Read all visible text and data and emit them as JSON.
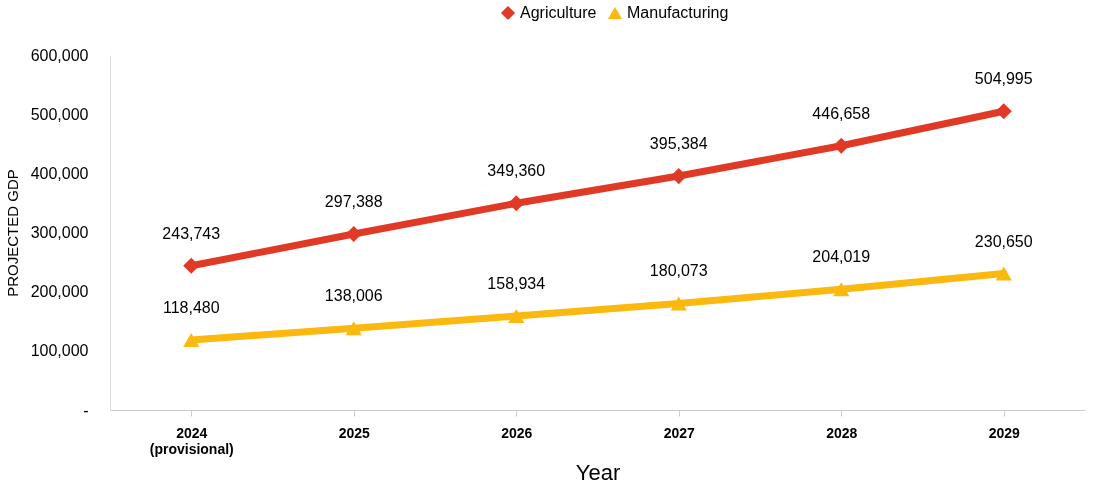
{
  "chart_data": {
    "type": "line",
    "xlabel": "Year",
    "ylabel": "PROJECTED GDP",
    "categories": [
      "2024\n(provisional)",
      "2025",
      "2026",
      "2027",
      "2028",
      "2029"
    ],
    "series": [
      {
        "name": "Agriculture",
        "color": "#e03a26",
        "marker": "diamond",
        "values": [
          243743,
          297388,
          349360,
          395384,
          446658,
          504995
        ],
        "value_labels": [
          "243,743",
          "297,388",
          "349,360",
          "395,384",
          "446,658",
          "504,995"
        ]
      },
      {
        "name": "Manufacturing",
        "color": "#fbb80f",
        "marker": "triangle",
        "values": [
          118480,
          138006,
          158934,
          180073,
          204019,
          230650
        ],
        "value_labels": [
          "118,480",
          "138,006",
          "158,934",
          "180,073",
          "204,019",
          "230,650"
        ]
      }
    ],
    "ylim": [
      0,
      600000
    ],
    "yticks": [
      {
        "value": 0,
        "label": "-"
      },
      {
        "value": 100000,
        "label": "100,000"
      },
      {
        "value": 200000,
        "label": "200,000"
      },
      {
        "value": 300000,
        "label": "300,000"
      },
      {
        "value": 400000,
        "label": "400,000"
      },
      {
        "value": 500000,
        "label": "500,000"
      },
      {
        "value": 600000,
        "label": "600,000"
      }
    ],
    "grid": false,
    "legend": "top",
    "line_style": "solid"
  }
}
